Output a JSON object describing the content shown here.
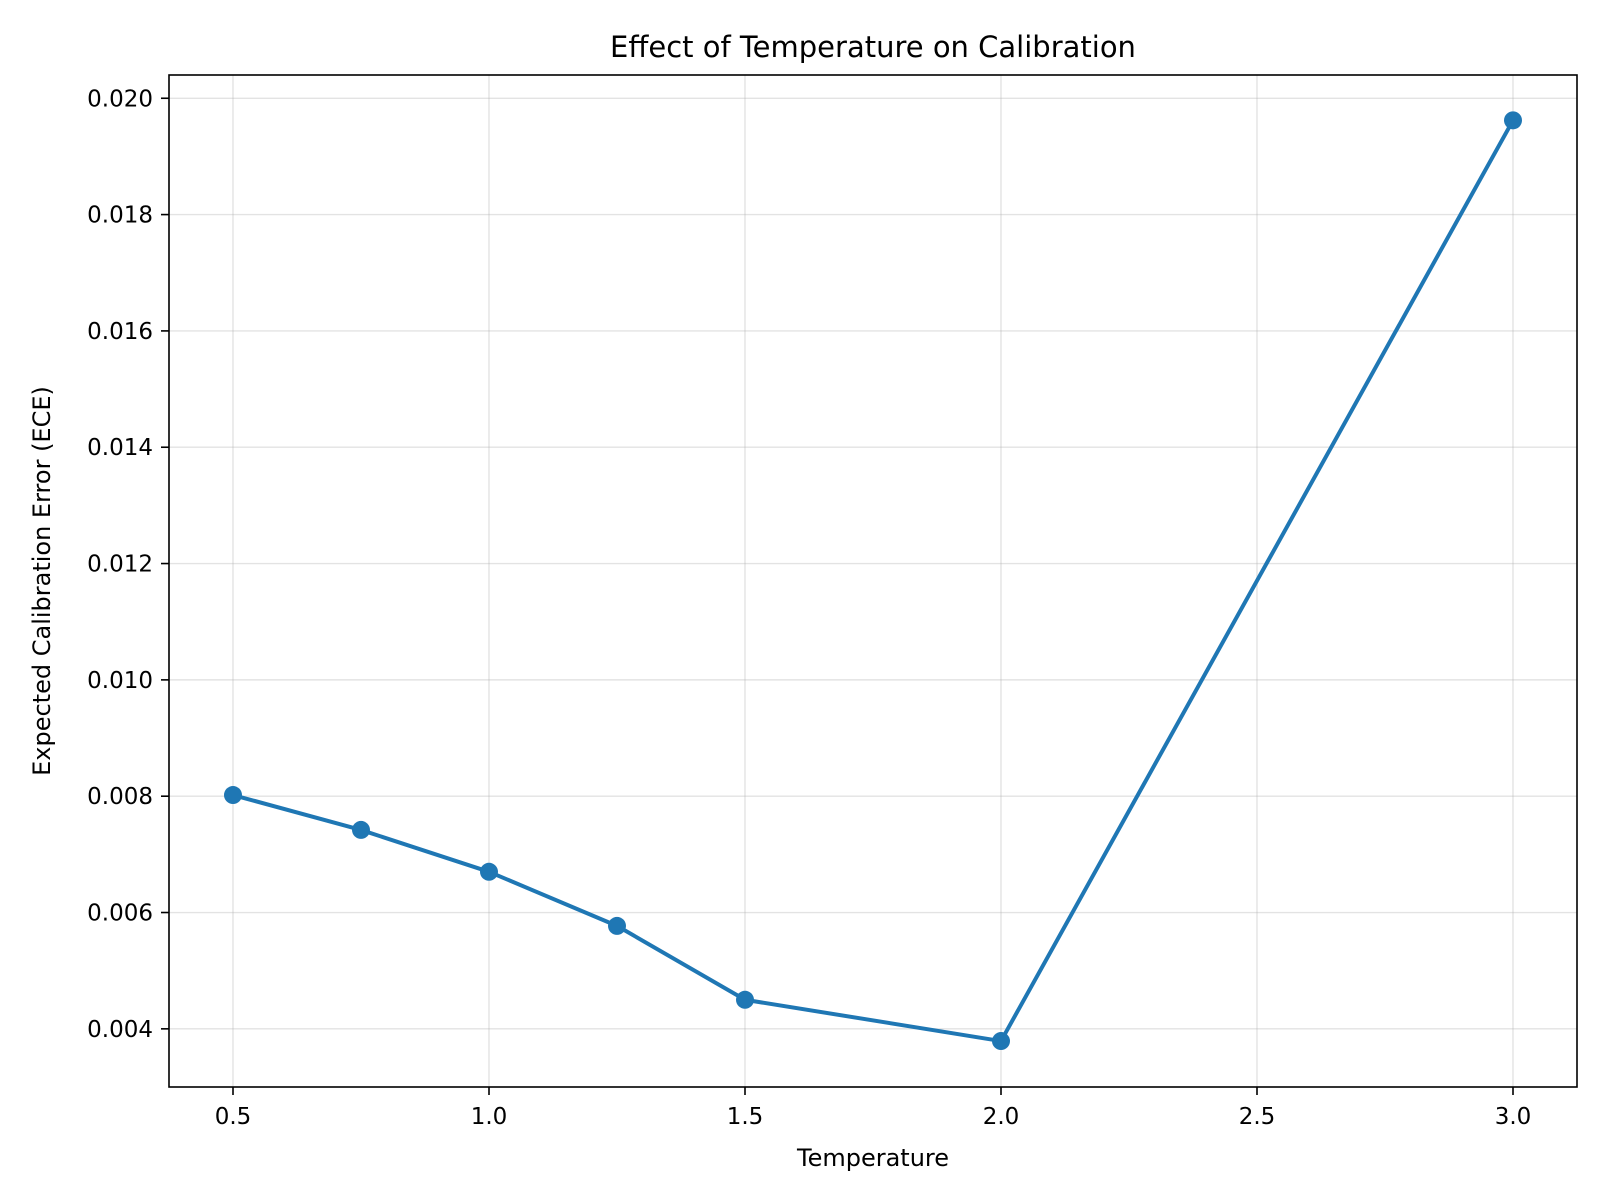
{
  "chart_data": {
    "type": "line",
    "title": "Effect of Temperature on Calibration",
    "xlabel": "Temperature",
    "ylabel": "Expected Calibration Error (ECE)",
    "xlim": [
      0.375,
      3.125
    ],
    "ylim": [
      0.003,
      0.0204
    ],
    "xticks": [
      0.5,
      1.0,
      1.5,
      2.0,
      2.5,
      3.0
    ],
    "xtick_labels": [
      "0.5",
      "1.0",
      "1.5",
      "2.0",
      "2.5",
      "3.0"
    ],
    "yticks": [
      0.004,
      0.006,
      0.008,
      0.01,
      0.012,
      0.014,
      0.016,
      0.018,
      0.02
    ],
    "ytick_labels": [
      "0.004",
      "0.006",
      "0.008",
      "0.010",
      "0.012",
      "0.014",
      "0.016",
      "0.018",
      "0.020"
    ],
    "grid": true,
    "series": [
      {
        "color": "#1f77b4",
        "marker": "circle",
        "x": [
          0.5,
          0.75,
          1.0,
          1.25,
          1.5,
          2.0,
          3.0
        ],
        "y": [
          0.00802,
          0.00742,
          0.0067,
          0.00577,
          0.0045,
          0.00379,
          0.01962
        ]
      }
    ]
  }
}
